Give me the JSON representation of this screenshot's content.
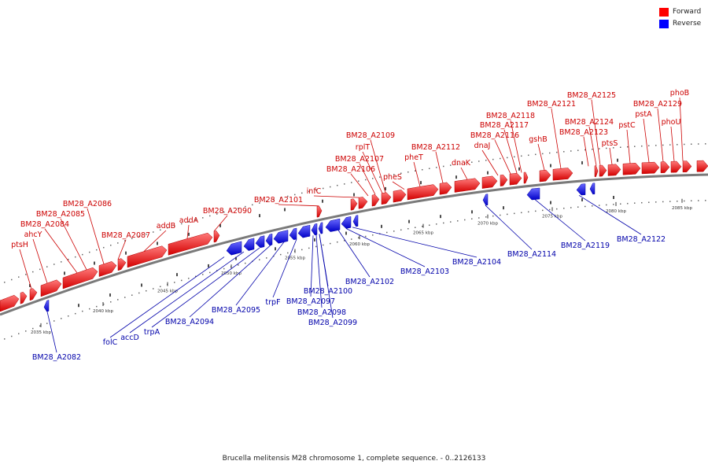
{
  "legend": {
    "forward_label": "Forward",
    "reverse_label": "Reverse",
    "forward_color": "#ff0000",
    "reverse_color": "#0000ff"
  },
  "caption": "Brucella melitensis M28 chromosome 1, complete sequence. - 0..2126133",
  "ticks": [
    "2035 kbp",
    "2040 kbp",
    "2045 kbp",
    "2050 kbp",
    "2055 kbp",
    "2060 kbp",
    "2065 kbp",
    "2070 kbp",
    "2075 kbp",
    "2080 kbp",
    "2085 kbp"
  ],
  "forward_genes": [
    "ptsH",
    "ahcY",
    "BM28_A2084",
    "BM28_A2085",
    "BM28_A2086",
    "BM28_A2087",
    "addB",
    "addA",
    "BM28_A2090",
    "BM28_A2101",
    "infC",
    "BM28_A2106",
    "BM28_A2107",
    "rplT",
    "BM28_A2109",
    "pheS",
    "pheT",
    "BM28_A2112",
    "dnaK",
    "dnaJ",
    "BM28_A2116",
    "BM28_A2117",
    "BM28_A2118",
    "gshB",
    "BM28_A2121",
    "BM28_A2123",
    "BM28_A2124",
    "BM28_A2125",
    "ptsS",
    "pstC",
    "pstA",
    "BM28_A2129",
    "phoU",
    "phoB"
  ],
  "reverse_genes": [
    "BM28_A2082",
    "folC",
    "accD",
    "trpA",
    "BM28_A2094",
    "BM28_A2095",
    "trpF",
    "BM28_A2097",
    "BM28_A2098",
    "BM28_A2099",
    "BM28_A2100",
    "BM28_A2102",
    "BM28_A2103",
    "BM28_A2104",
    "BM28_A2114",
    "BM28_A2119",
    "BM28_A2122"
  ]
}
